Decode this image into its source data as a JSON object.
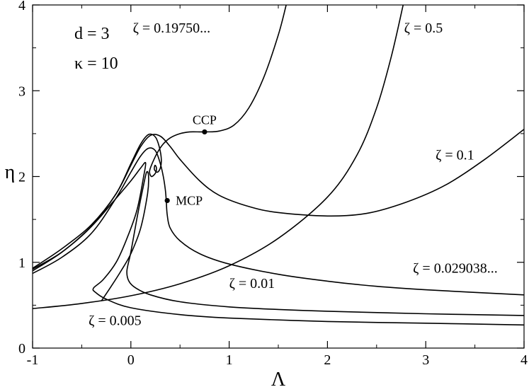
{
  "chart_data": {
    "type": "line",
    "title": "",
    "xlabel": "Λ",
    "ylabel": "η",
    "xlim": [
      -1,
      4
    ],
    "ylim": [
      0,
      4
    ],
    "grid": false,
    "x_ticks": [
      "-1",
      "0",
      "1",
      "2",
      "3",
      "4"
    ],
    "y_ticks": [
      "0",
      "1",
      "2",
      "3",
      "4"
    ],
    "info_text": [
      "d = 3",
      "κ = 10"
    ],
    "series": [
      {
        "name": "ζ = 0.19750...",
        "points": [
          [
            -1.0,
            0.93
          ],
          [
            -0.7,
            1.16
          ],
          [
            -0.4,
            1.44
          ],
          [
            -0.15,
            1.8
          ],
          [
            0.0,
            2.15
          ],
          [
            0.1,
            2.38
          ],
          [
            0.18,
            2.49
          ],
          [
            0.25,
            2.46
          ],
          [
            0.29,
            2.34
          ],
          [
            0.31,
            2.2
          ],
          [
            0.3,
            2.1
          ],
          [
            0.27,
            2.05
          ],
          [
            0.24,
            2.08
          ],
          [
            0.245,
            2.13
          ],
          [
            0.26,
            2.1
          ],
          [
            0.25,
            2.04
          ],
          [
            0.21,
            2.0
          ],
          [
            0.19,
            2.06
          ],
          [
            0.22,
            2.16
          ],
          [
            0.27,
            2.28
          ],
          [
            0.33,
            2.38
          ],
          [
            0.4,
            2.45
          ],
          [
            0.5,
            2.5
          ],
          [
            0.6,
            2.52
          ],
          [
            0.75,
            2.52
          ],
          [
            0.9,
            2.53
          ],
          [
            1.05,
            2.6
          ],
          [
            1.2,
            2.8
          ],
          [
            1.35,
            3.15
          ],
          [
            1.5,
            3.65
          ],
          [
            1.58,
            4.0
          ]
        ]
      },
      {
        "name": "ζ = 0.5",
        "points": [
          [
            -1.0,
            0.46
          ],
          [
            -0.5,
            0.52
          ],
          [
            0.0,
            0.61
          ],
          [
            0.5,
            0.75
          ],
          [
            1.0,
            0.96
          ],
          [
            1.5,
            1.28
          ],
          [
            2.0,
            1.76
          ],
          [
            2.3,
            2.25
          ],
          [
            2.5,
            2.8
          ],
          [
            2.65,
            3.4
          ],
          [
            2.77,
            4.0
          ]
        ]
      },
      {
        "name": "ζ = 0.1",
        "points": [
          [
            -1.0,
            0.9
          ],
          [
            -0.7,
            1.12
          ],
          [
            -0.4,
            1.42
          ],
          [
            -0.15,
            1.8
          ],
          [
            0.0,
            2.13
          ],
          [
            0.1,
            2.35
          ],
          [
            0.2,
            2.48
          ],
          [
            0.3,
            2.47
          ],
          [
            0.4,
            2.35
          ],
          [
            0.5,
            2.2
          ],
          [
            0.7,
            1.95
          ],
          [
            0.9,
            1.78
          ],
          [
            1.2,
            1.65
          ],
          [
            1.5,
            1.58
          ],
          [
            2.0,
            1.54
          ],
          [
            2.4,
            1.57
          ],
          [
            2.8,
            1.7
          ],
          [
            3.2,
            1.9
          ],
          [
            3.6,
            2.2
          ],
          [
            4.0,
            2.55
          ]
        ]
      },
      {
        "name": "ζ = 0.029038...",
        "points": [
          [
            -1.0,
            0.87
          ],
          [
            -0.7,
            1.06
          ],
          [
            -0.4,
            1.34
          ],
          [
            -0.15,
            1.75
          ],
          [
            0.0,
            2.05
          ],
          [
            0.1,
            2.24
          ],
          [
            0.18,
            2.33
          ],
          [
            0.25,
            2.3
          ],
          [
            0.3,
            2.15
          ],
          [
            0.33,
            2.0
          ],
          [
            0.35,
            1.85
          ],
          [
            0.36,
            1.72
          ],
          [
            0.37,
            1.55
          ],
          [
            0.4,
            1.4
          ],
          [
            0.5,
            1.25
          ],
          [
            0.7,
            1.1
          ],
          [
            1.0,
            0.98
          ],
          [
            1.5,
            0.86
          ],
          [
            2.0,
            0.78
          ],
          [
            2.5,
            0.72
          ],
          [
            3.0,
            0.68
          ],
          [
            4.0,
            0.62
          ]
        ]
      },
      {
        "name": "ζ = 0.01",
        "points": [
          [
            -0.3,
            0.55
          ],
          [
            -0.2,
            0.72
          ],
          [
            -0.1,
            0.9
          ],
          [
            0.0,
            1.1
          ],
          [
            0.1,
            1.4
          ],
          [
            0.17,
            1.8
          ],
          [
            0.18,
            2.0
          ],
          [
            0.16,
            2.05
          ],
          [
            0.12,
            1.85
          ],
          [
            0.06,
            1.5
          ],
          [
            0.0,
            1.12
          ],
          [
            -0.04,
            0.9
          ],
          [
            -0.02,
            0.78
          ],
          [
            0.05,
            0.7
          ],
          [
            0.2,
            0.62
          ],
          [
            0.5,
            0.54
          ],
          [
            1.0,
            0.48
          ],
          [
            1.5,
            0.45
          ],
          [
            2.0,
            0.43
          ],
          [
            3.0,
            0.4
          ],
          [
            4.0,
            0.38
          ]
        ]
      },
      {
        "name": "ζ = 0.005",
        "points": [
          [
            -1.0,
            0.92
          ],
          [
            -0.7,
            1.12
          ],
          [
            -0.4,
            1.42
          ],
          [
            -0.2,
            1.68
          ],
          [
            0.0,
            1.95
          ],
          [
            0.1,
            2.1
          ],
          [
            0.15,
            2.16
          ],
          [
            0.13,
            2.0
          ],
          [
            0.06,
            1.6
          ],
          [
            -0.05,
            1.25
          ],
          [
            -0.15,
            1.0
          ],
          [
            -0.28,
            0.8
          ],
          [
            -0.38,
            0.7
          ],
          [
            -0.36,
            0.65
          ],
          [
            -0.25,
            0.57
          ],
          [
            0.0,
            0.47
          ],
          [
            0.5,
            0.39
          ],
          [
            1.0,
            0.35
          ],
          [
            2.0,
            0.31
          ],
          [
            3.0,
            0.29
          ],
          [
            4.0,
            0.27
          ]
        ]
      }
    ],
    "curve_labels": [
      {
        "text": "ζ = 0.19750...",
        "x": 0.02,
        "y": 3.68
      },
      {
        "text": "ζ = 0.5",
        "x": 2.78,
        "y": 3.68
      },
      {
        "text": "ζ = 0.1",
        "x": 3.1,
        "y": 2.2
      },
      {
        "text": "ζ = 0.029038...",
        "x": 2.87,
        "y": 0.88
      },
      {
        "text": "ζ = 0.01",
        "x": 1.0,
        "y": 0.7
      },
      {
        "text": "ζ = 0.005",
        "x": -0.43,
        "y": 0.27
      }
    ],
    "points": [
      {
        "label": "CCP",
        "x": 0.75,
        "y": 2.52
      },
      {
        "label": "MCP",
        "x": 0.37,
        "y": 1.72
      }
    ]
  }
}
